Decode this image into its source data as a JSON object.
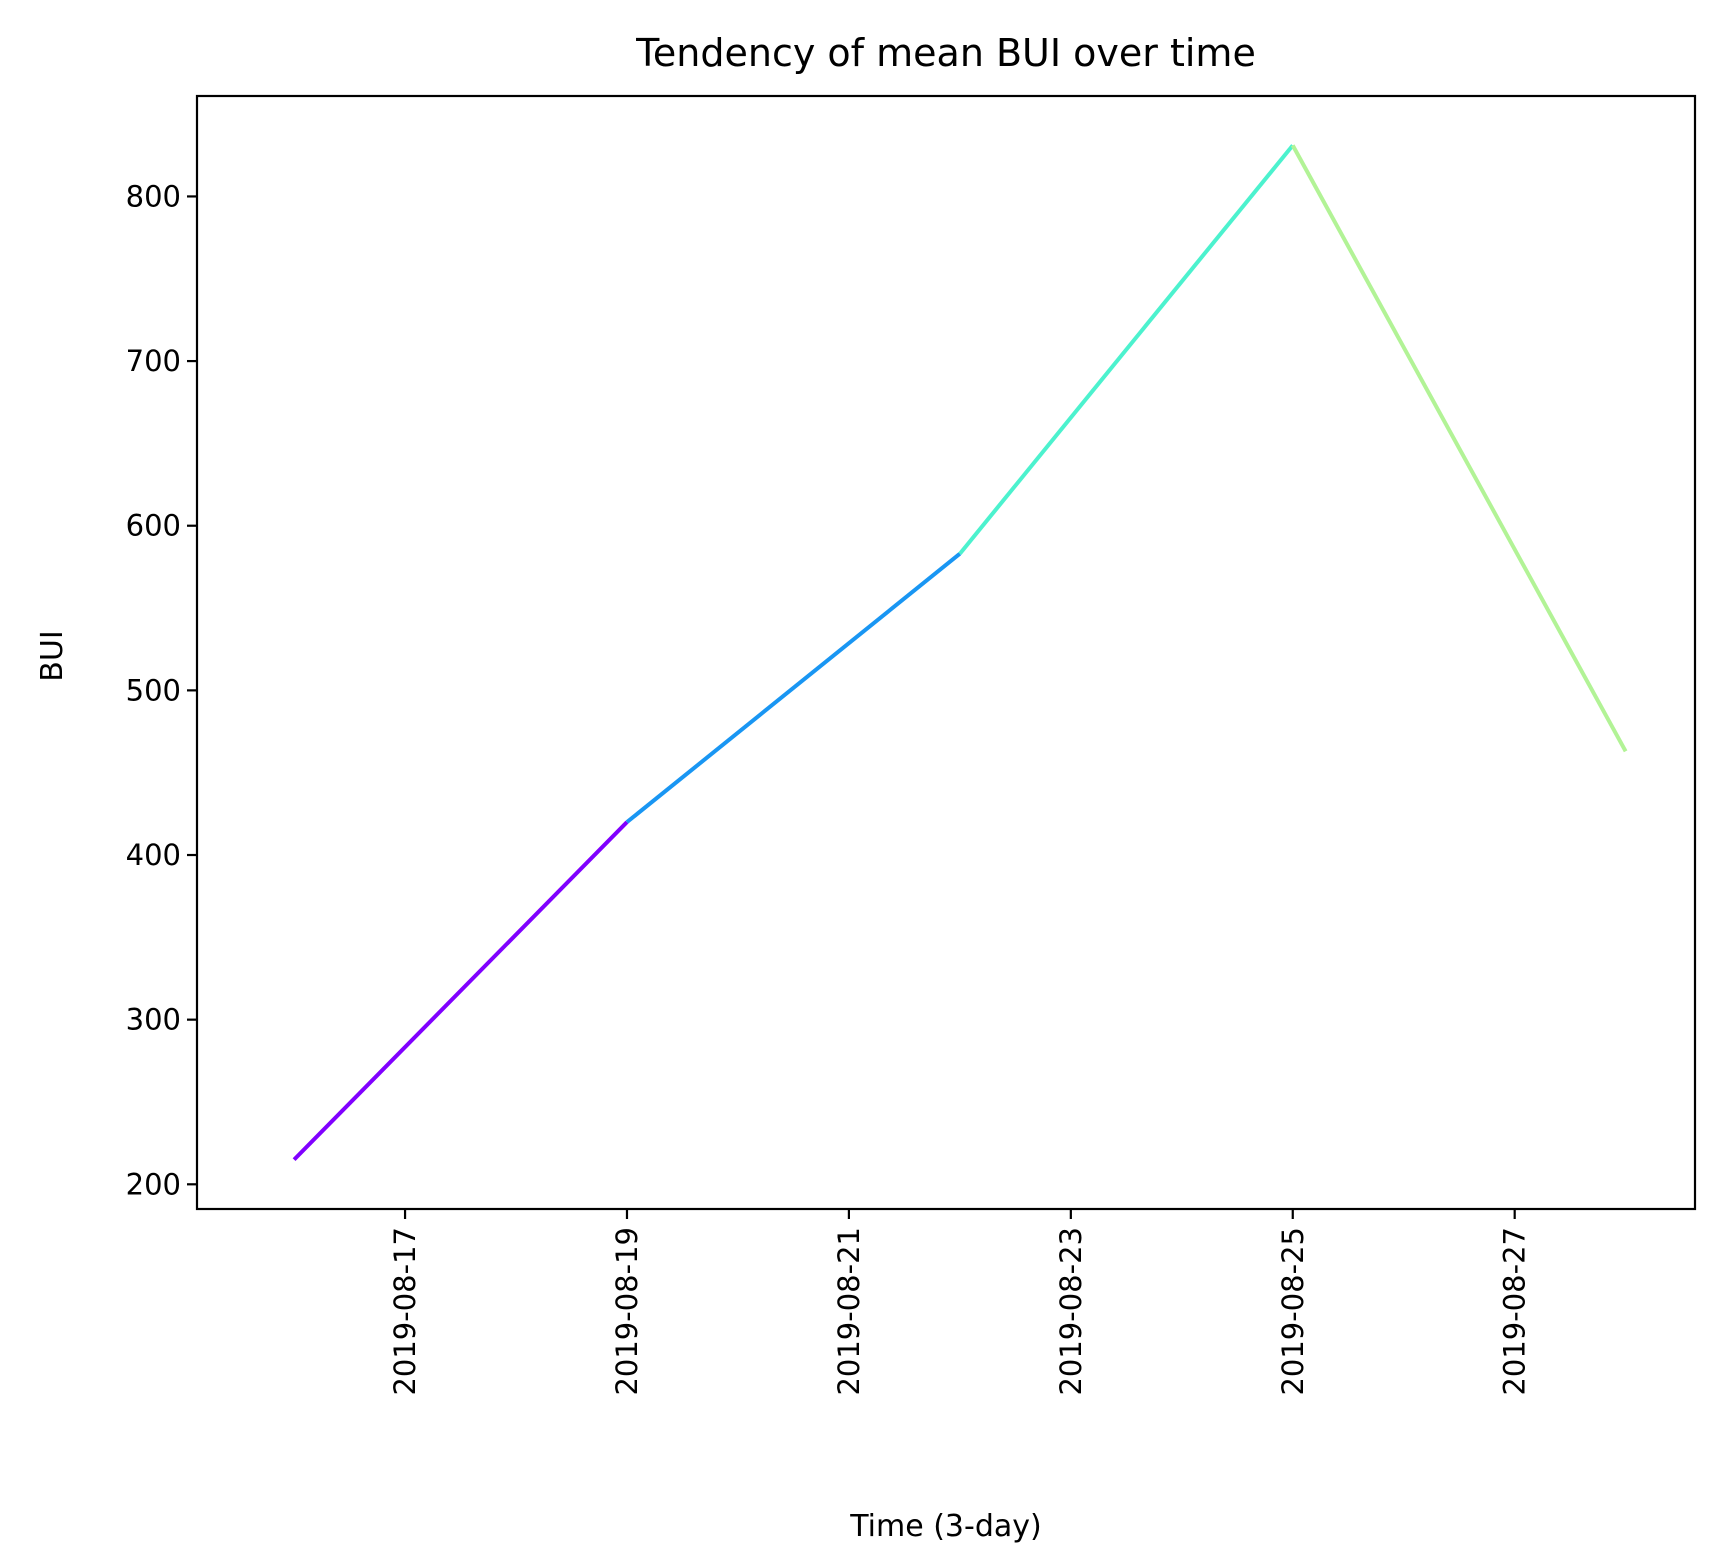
{
  "chart_data": {
    "type": "line",
    "title": "Tendency of mean BUI over time",
    "xlabel": "Time (3-day)",
    "ylabel": "BUI",
    "x": [
      "2019-08-16",
      "2019-08-19",
      "2019-08-22",
      "2019-08-25",
      "2019-08-28"
    ],
    "series": [
      {
        "values": [
          215,
          420,
          583,
          831,
          463
        ]
      }
    ],
    "segment_colors": [
      "#8000ff",
      "#1996f3",
      "#4cf2ce",
      "#b2f396"
    ],
    "xlim": [
      "2019-08-15 03:00",
      "2019-08-28 15:00"
    ],
    "ylim": [
      185,
      861
    ],
    "xticks": [
      "2019-08-17",
      "2019-08-19",
      "2019-08-21",
      "2019-08-23",
      "2019-08-25",
      "2019-08-27"
    ],
    "yticks": [
      200,
      300,
      400,
      500,
      600,
      700,
      800
    ],
    "grid": false,
    "legend": "none"
  }
}
